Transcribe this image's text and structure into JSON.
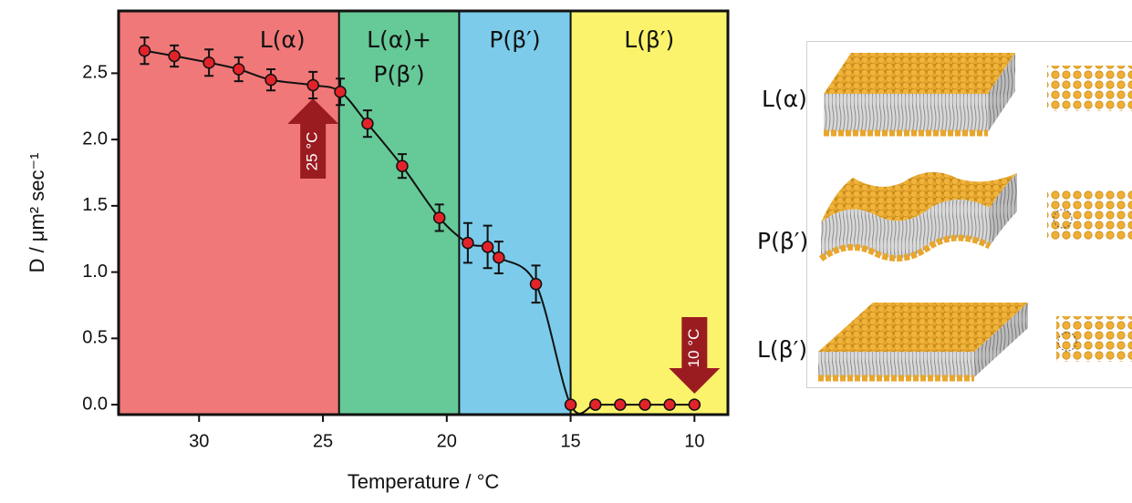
{
  "chart_data": {
    "type": "scatter",
    "xlabel": "Temperature / °C",
    "ylabel": "D / μm² sec⁻¹",
    "xlim": [
      33.25,
      8.65
    ],
    "ylim": [
      -0.075,
      2.97
    ],
    "xticks": [
      30,
      25,
      20,
      15,
      10
    ],
    "yticks": [
      {
        "value": 0,
        "label": "0.0"
      },
      0.5,
      {
        "value": 1,
        "label": "1.0"
      },
      1.5,
      {
        "value": 2,
        "label": "2.0"
      },
      2.5
    ],
    "regions": [
      {
        "label": [
          "L(α)"
        ],
        "from": 33.25,
        "to": 24.35,
        "color": "#f07878"
      },
      {
        "label": [
          "L(α)+",
          "P(β′)"
        ],
        "from": 24.35,
        "to": 19.5,
        "color": "#66c998"
      },
      {
        "label": [
          "P(β′)"
        ],
        "from": 19.5,
        "to": 15.0,
        "color": "#7ccbea"
      },
      {
        "label": [
          "L(β′)"
        ],
        "from": 15.0,
        "to": 8.65,
        "color": "#fbf36b"
      }
    ],
    "series": [
      {
        "color": "#e3232a",
        "x": [
          32.2,
          31.0,
          29.6,
          28.4,
          27.1,
          25.4,
          24.3,
          23.2,
          21.8,
          20.3,
          19.15,
          18.35,
          17.9,
          16.4,
          15.0,
          14.0,
          13.0,
          12.0,
          11.0,
          10.0
        ],
        "values": [
          2.67,
          2.63,
          2.58,
          2.53,
          2.45,
          2.41,
          2.36,
          2.12,
          1.8,
          1.41,
          1.22,
          1.19,
          1.11,
          0.91,
          0,
          0,
          0,
          0,
          0,
          0
        ],
        "errors": [
          0.1,
          0.08,
          0.1,
          0.09,
          0.08,
          0.1,
          0.1,
          0.1,
          0.09,
          0.1,
          0.15,
          0.16,
          0.12,
          0.14,
          0,
          0,
          0,
          0,
          0,
          0
        ]
      }
    ],
    "annotations": [
      {
        "text": "25 °C",
        "x": 25.4,
        "direction": "up",
        "color": "#9b1c20"
      },
      {
        "text": "10 °C",
        "x": 10.0,
        "direction": "down",
        "color": "#9b1c20"
      }
    ]
  },
  "diagram": {
    "labels": [
      "L(α)",
      "P(β′)",
      "L(β′)"
    ]
  }
}
